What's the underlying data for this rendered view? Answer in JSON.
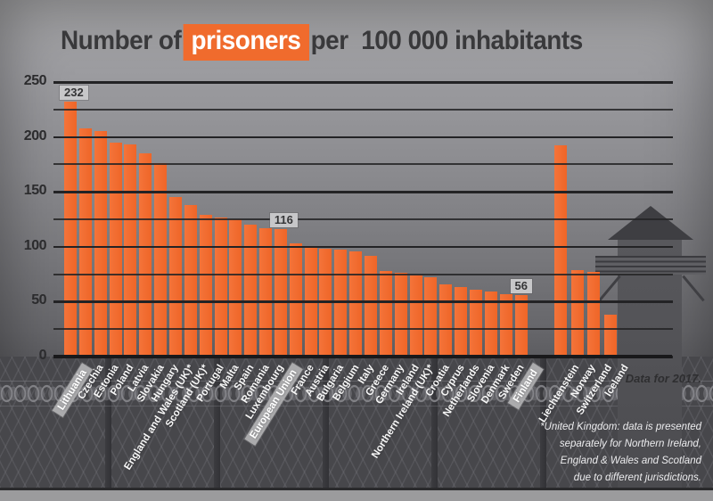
{
  "title": {
    "prefix": "Number of",
    "highlight": "prisoners",
    "suffix": "per  100 000 inhabitants"
  },
  "notes": {
    "data_note": "Data for 2017.",
    "footnote_lines": [
      "*United Kingdom: data is presented",
      "separately for Northern Ireland,",
      "England & Wales and Scotland",
      "due to different jurisdictions."
    ]
  },
  "colors": {
    "bar_orange": "#f06b2d",
    "title_dark": "#39393b",
    "label_white": "#f7f7f7",
    "callout_bg": "#c7c7c9",
    "fence_dark": "#47474b"
  },
  "chart_data": {
    "type": "bar",
    "title": "Number of prisoners per 100 000 inhabitants",
    "xlabel": "",
    "ylabel": "",
    "ylim": [
      0,
      250
    ],
    "yticks": [
      250,
      200,
      150,
      100,
      50,
      0
    ],
    "ytick_minor_interval": 25,
    "grid": "horizontal",
    "legend": "none",
    "categories": [
      "Lithuania",
      "Czechia",
      "Estonia",
      "Poland",
      "Latvia",
      "Slovakia",
      "Hungary",
      "England and Wales (UK)*",
      "Scotland (UK)*",
      "Portugal",
      "Malta",
      "Spain",
      "Romania",
      "Luxembourg",
      "European Union",
      "France",
      "Austria",
      "Bulgaria",
      "Belgium",
      "Italy",
      "Greece",
      "Germany",
      "Ireland",
      "Northern Ireland (UK)*",
      "Croatia",
      "Cyprus",
      "Netherlands",
      "Slovenia",
      "Denmark",
      "Sweden",
      "Finland",
      "Liechtenstein",
      "Norway",
      "Switzerland",
      "Iceland"
    ],
    "values": [
      232,
      208,
      205,
      195,
      193,
      185,
      176,
      145,
      138,
      129,
      127,
      125,
      120,
      117,
      116,
      103,
      100,
      98,
      97,
      96,
      92,
      78,
      76,
      74,
      72,
      66,
      63,
      61,
      59,
      57,
      56,
      192,
      79,
      77,
      38
    ],
    "bars": [
      {
        "label": "Lithuania",
        "value": 232,
        "highlight": true,
        "callout": true,
        "group": 1
      },
      {
        "label": "Czechia",
        "value": 208,
        "group": 1
      },
      {
        "label": "Estonia",
        "value": 205,
        "group": 1
      },
      {
        "label": "Poland",
        "value": 195,
        "group": 1
      },
      {
        "label": "Latvia",
        "value": 193,
        "group": 1
      },
      {
        "label": "Slovakia",
        "value": 185,
        "group": 1
      },
      {
        "label": "Hungary",
        "value": 176,
        "group": 1
      },
      {
        "label": "England and Wales (UK)*",
        "value": 145,
        "group": 1
      },
      {
        "label": "Scotland (UK)*",
        "value": 138,
        "group": 1
      },
      {
        "label": "Portugal",
        "value": 129,
        "group": 1
      },
      {
        "label": "Malta",
        "value": 127,
        "group": 1
      },
      {
        "label": "Spain",
        "value": 125,
        "group": 1
      },
      {
        "label": "Romania",
        "value": 120,
        "group": 1
      },
      {
        "label": "Luxembourg",
        "value": 117,
        "group": 1
      },
      {
        "label": "European Union",
        "value": 116,
        "highlight": true,
        "callout": true,
        "group": 1
      },
      {
        "label": "France",
        "value": 103,
        "group": 1
      },
      {
        "label": "Austria",
        "value": 100,
        "group": 1
      },
      {
        "label": "Bulgaria",
        "value": 98,
        "group": 1
      },
      {
        "label": "Belgium",
        "value": 97,
        "group": 1
      },
      {
        "label": "Italy",
        "value": 96,
        "group": 1
      },
      {
        "label": "Greece",
        "value": 92,
        "group": 1
      },
      {
        "label": "Germany",
        "value": 78,
        "group": 1
      },
      {
        "label": "Ireland",
        "value": 76,
        "group": 1
      },
      {
        "label": "Northern Ireland (UK)*",
        "value": 74,
        "group": 1
      },
      {
        "label": "Croatia",
        "value": 72,
        "group": 1
      },
      {
        "label": "Cyprus",
        "value": 66,
        "group": 1
      },
      {
        "label": "Netherlands",
        "value": 63,
        "group": 1
      },
      {
        "label": "Slovenia",
        "value": 61,
        "group": 1
      },
      {
        "label": "Denmark",
        "value": 59,
        "group": 1
      },
      {
        "label": "Sweden",
        "value": 57,
        "group": 1
      },
      {
        "label": "Finland",
        "value": 56,
        "highlight": true,
        "callout": true,
        "group": 1
      },
      {
        "label": "Liechtenstein",
        "value": 192,
        "group": 2
      },
      {
        "label": "Norway",
        "value": 79,
        "group": 2
      },
      {
        "label": "Switzerland",
        "value": 77,
        "group": 2
      },
      {
        "label": "Iceland",
        "value": 38,
        "group": 2
      }
    ]
  }
}
